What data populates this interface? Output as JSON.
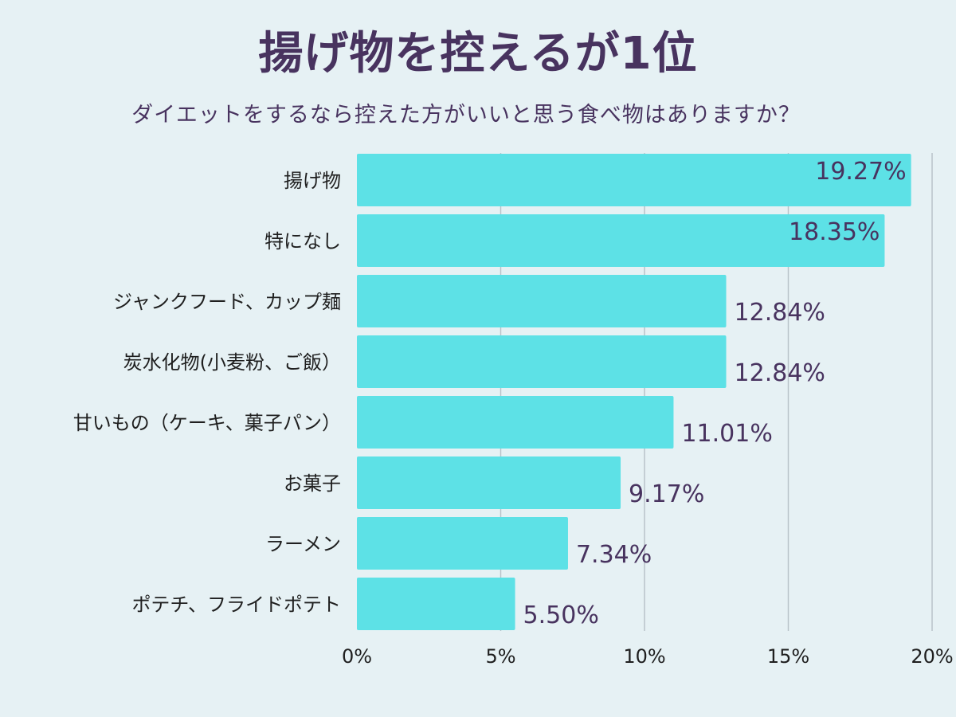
{
  "chart_data": {
    "type": "bar",
    "orientation": "horizontal",
    "title": "揚げ物を控えるが1位",
    "subtitle": "ダイエットをするなら控えた方がいいと思う食べ物はありますか？",
    "categories": [
      "揚げ物",
      "特になし",
      "ジャンクフード、カップ麺",
      "炭水化物(小麦粉、ご飯）",
      "甘いもの（ケーキ、菓子パン）",
      "お菓子",
      "ラーメン",
      "ポテチ、フライドポテト"
    ],
    "values": [
      19.27,
      18.35,
      12.84,
      12.84,
      11.01,
      9.17,
      7.34,
      5.5
    ],
    "value_labels": [
      "19.27%",
      "18.35%",
      "12.84%",
      "12.84%",
      "11.01%",
      "9.17%",
      "7.34%",
      "5.50%"
    ],
    "xlim": [
      0,
      20
    ],
    "xticks": [
      0,
      5,
      10,
      15,
      20
    ],
    "xtick_labels": [
      "0%",
      "5%",
      "10%",
      "15%",
      "20%"
    ],
    "grid": true,
    "colors": {
      "bar": "#5de1e6",
      "background": "#e6f1f4",
      "title": "#48335f",
      "value_label": "#48335f",
      "grid": "#b9c3c9"
    }
  }
}
